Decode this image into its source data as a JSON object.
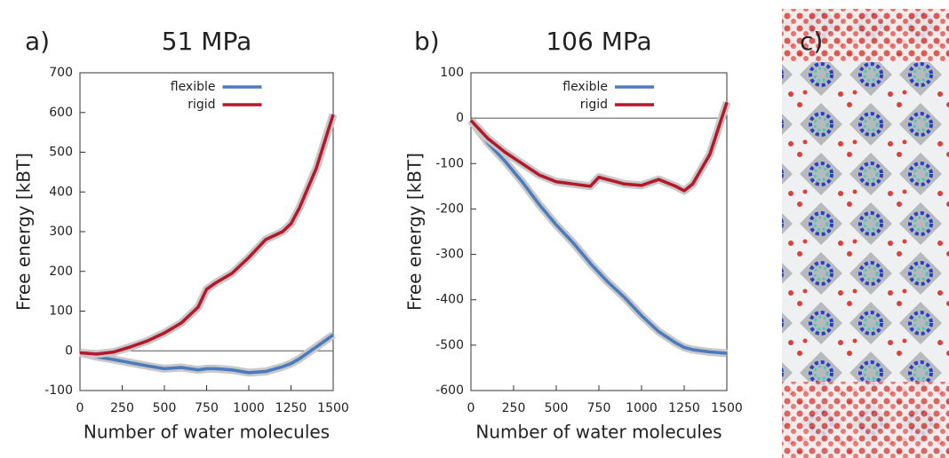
{
  "chart_data": [
    {
      "type": "line",
      "panel_label": "a)",
      "title": "51 MPa",
      "xlabel": "Number of water molecules",
      "ylabel": "Free energy [kBT]",
      "x": [
        0,
        100,
        200,
        300,
        400,
        500,
        600,
        700,
        750,
        800,
        900,
        1000,
        1100,
        1200,
        1250,
        1300,
        1400,
        1500
      ],
      "series": [
        {
          "name": "flexible",
          "color": "#4a7bbf",
          "values": [
            -5,
            -15,
            -22,
            -30,
            -38,
            -45,
            -42,
            -48,
            -45,
            -45,
            -48,
            -55,
            -52,
            -40,
            -32,
            -20,
            10,
            40
          ]
        },
        {
          "name": "rigid",
          "color": "#b5172b",
          "values": [
            -5,
            -8,
            -3,
            10,
            25,
            45,
            70,
            110,
            155,
            170,
            195,
            235,
            280,
            300,
            320,
            360,
            460,
            595
          ]
        }
      ],
      "xlim": [
        0,
        1500
      ],
      "xticks": [
        0,
        250,
        500,
        750,
        1000,
        1250,
        1500
      ],
      "ylim": [
        -100,
        700
      ],
      "yticks": [
        -100,
        0,
        100,
        200,
        300,
        400,
        500,
        600,
        700
      ],
      "hline": 0,
      "legend": "top"
    },
    {
      "type": "line",
      "panel_label": "b)",
      "title": "106 MPa",
      "xlabel": "Number of water molecules",
      "ylabel": "Free energy [kBT]",
      "x": [
        0,
        100,
        200,
        300,
        400,
        500,
        600,
        700,
        750,
        800,
        900,
        1000,
        1100,
        1200,
        1250,
        1300,
        1400,
        1500
      ],
      "series": [
        {
          "name": "flexible",
          "color": "#4a7bbf",
          "values": [
            -5,
            -55,
            -95,
            -140,
            -190,
            -235,
            -275,
            -320,
            -340,
            -360,
            -395,
            -435,
            -470,
            -495,
            -505,
            -510,
            -515,
            -518
          ]
        },
        {
          "name": "rigid",
          "color": "#b5172b",
          "values": [
            -5,
            -45,
            -75,
            -100,
            -125,
            -140,
            -145,
            -150,
            -130,
            -135,
            -145,
            -148,
            -135,
            -150,
            -160,
            -145,
            -80,
            35
          ]
        }
      ],
      "xlim": [
        0,
        1500
      ],
      "xticks": [
        0,
        250,
        500,
        750,
        1000,
        1250,
        1500
      ],
      "ylim": [
        -600,
        100
      ],
      "yticks": [
        -600,
        -500,
        -400,
        -300,
        -200,
        -100,
        0,
        100
      ],
      "hline": 0,
      "legend": "top"
    }
  ],
  "panel_c": {
    "label": "c)"
  }
}
